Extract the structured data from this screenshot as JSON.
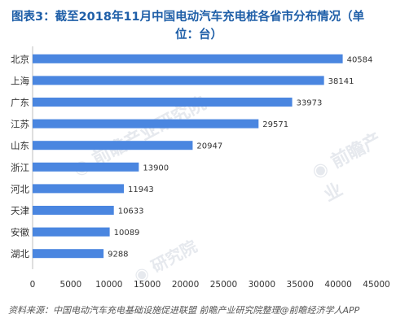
{
  "title": {
    "line1": "图表3：截至2018年11月中国电动汽车充电桩各省市分布情况（单",
    "line2": "位：台）"
  },
  "source": "资料来源：中国电动汽车充电基础设施促进联盟   前瞻产业研究院整理@前瞻经济学人APP",
  "colors": {
    "bar": "#4a86e0",
    "axis": "#bfbfbf",
    "text": "#333333",
    "title": "#1f5fa8"
  },
  "chart_data": {
    "type": "bar",
    "orientation": "horizontal",
    "categories": [
      "北京",
      "上海",
      "广东",
      "江苏",
      "山东",
      "浙江",
      "河北",
      "天津",
      "安徽",
      "湖北"
    ],
    "values": [
      40584,
      38141,
      33973,
      29571,
      20947,
      13900,
      11943,
      10633,
      10089,
      9288
    ],
    "xlim": [
      0,
      45000
    ],
    "xticks": [
      0,
      5000,
      10000,
      15000,
      20000,
      25000,
      30000,
      35000,
      40000,
      45000
    ],
    "grid": false,
    "legend": false
  }
}
